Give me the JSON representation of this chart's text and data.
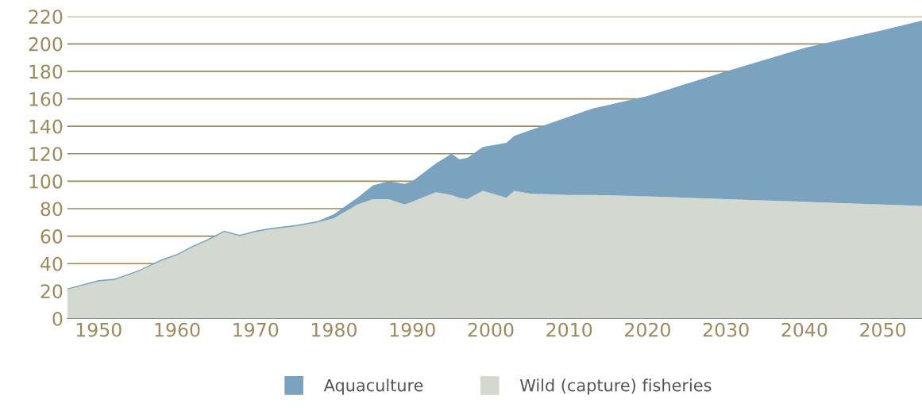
{
  "chart_data": {
    "type": "area",
    "stacked": true,
    "x": [
      1946,
      1950,
      1952,
      1955,
      1958,
      1960,
      1962,
      1964,
      1966,
      1968,
      1970,
      1972,
      1975,
      1978,
      1980,
      1983,
      1985,
      1987,
      1989,
      1990,
      1993,
      1995,
      1996,
      1997,
      1999,
      2002,
      2003,
      2005,
      2010,
      2013,
      2020,
      2030,
      2040,
      2050,
      2055
    ],
    "series": [
      {
        "name": "Wild (capture) fisheries",
        "color": "#d3d8d0",
        "values": [
          21,
          27,
          28,
          34,
          42,
          46,
          52,
          57,
          63,
          60,
          63,
          65,
          67,
          70,
          73,
          83,
          87,
          87,
          83,
          85,
          92,
          90,
          88,
          87,
          93,
          88,
          93,
          91,
          90,
          90,
          89,
          87,
          85,
          83,
          82
        ]
      },
      {
        "name": "Aquaculture",
        "color": "#7ba3bf",
        "values": [
          1,
          1,
          1,
          1,
          1,
          1,
          1,
          1,
          1,
          1,
          1,
          1,
          1,
          1,
          3,
          5,
          10,
          13,
          15,
          15,
          21,
          30,
          28,
          30,
          32,
          40,
          40,
          46,
          57,
          63,
          73,
          93,
          112,
          127,
          135
        ]
      }
    ],
    "xlim": [
      1946,
      2055
    ],
    "xticks": [
      1950,
      1960,
      1970,
      1980,
      1990,
      2000,
      2010,
      2020,
      2030,
      2040,
      2050
    ],
    "ylim": [
      0,
      220
    ],
    "yticks": [
      0,
      20,
      40,
      60,
      80,
      100,
      120,
      140,
      160,
      180,
      200,
      220
    ],
    "grid": "y",
    "legend": "bottom"
  }
}
